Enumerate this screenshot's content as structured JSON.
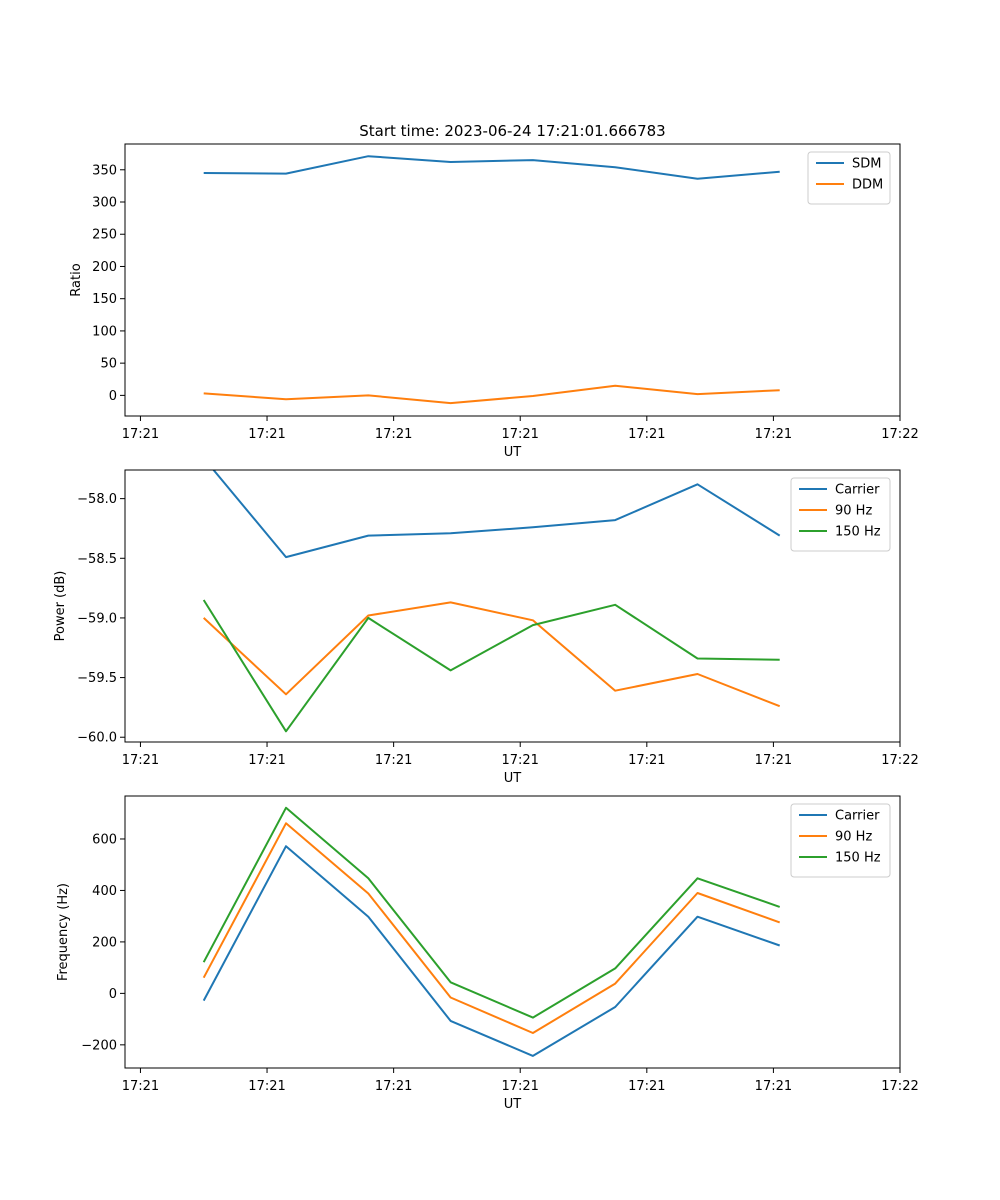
{
  "figure": {
    "title": "Start time: 2023-06-24 17:21:01.666783"
  },
  "colors": {
    "blue": "#1f77b4",
    "orange": "#ff7f0e",
    "green": "#2ca02c"
  },
  "chart_data": [
    {
      "type": "line",
      "title": "Start time: 2023-06-24 17:21:01.666783",
      "xlabel": "UT",
      "ylabel": "Ratio",
      "x_tick_labels": [
        "17:21",
        "17:21",
        "17:21",
        "17:21",
        "17:21",
        "17:21",
        "17:22"
      ],
      "y_ticks": [
        0,
        50,
        100,
        150,
        200,
        250,
        300,
        350
      ],
      "y_tick_labels": [
        "0",
        "50",
        "100",
        "150",
        "200",
        "250",
        "300",
        "350"
      ],
      "ylim": [
        -32,
        390
      ],
      "xlim": [
        -0.122,
        6.0
      ],
      "x": [
        0.5,
        1.15,
        1.8,
        2.45,
        3.1,
        3.75,
        4.4,
        5.05
      ],
      "legend_position": "upper-right",
      "grid": false,
      "series": [
        {
          "name": "SDM",
          "color": "#1f77b4",
          "values": [
            345,
            344,
            371,
            362,
            365,
            354,
            336,
            347
          ]
        },
        {
          "name": "DDM",
          "color": "#ff7f0e",
          "values": [
            3,
            -6,
            0,
            -12,
            -1,
            15,
            2,
            8
          ]
        }
      ]
    },
    {
      "type": "line",
      "xlabel": "UT",
      "ylabel": "Power (dB)",
      "x_tick_labels": [
        "17:21",
        "17:21",
        "17:21",
        "17:21",
        "17:21",
        "17:21",
        "17:22"
      ],
      "y_ticks": [
        -60.0,
        -59.5,
        -59.0,
        -58.5,
        -58.0
      ],
      "y_tick_labels": [
        "−60.0",
        "−59.5",
        "−59.0",
        "−58.5",
        "−58.0"
      ],
      "ylim": [
        -60.04,
        -57.76
      ],
      "xlim": [
        -0.122,
        6.0
      ],
      "x": [
        0.5,
        1.15,
        1.8,
        2.45,
        3.1,
        3.75,
        4.4,
        5.05
      ],
      "legend_position": "upper-right",
      "grid": false,
      "series": [
        {
          "name": "Carrier",
          "color": "#1f77b4",
          "values": [
            -57.66,
            -58.49,
            -58.31,
            -58.29,
            -58.24,
            -58.18,
            -57.88,
            -58.31
          ]
        },
        {
          "name": "90 Hz",
          "color": "#ff7f0e",
          "values": [
            -59.0,
            -59.64,
            -58.98,
            -58.87,
            -59.02,
            -59.61,
            -59.47,
            -59.74
          ]
        },
        {
          "name": "150 Hz",
          "color": "#2ca02c",
          "values": [
            -58.85,
            -59.95,
            -59.0,
            -59.44,
            -59.06,
            -58.89,
            -59.34,
            -59.35
          ]
        }
      ]
    },
    {
      "type": "line",
      "xlabel": "UT",
      "ylabel": "Frequency (Hz)",
      "x_tick_labels": [
        "17:21",
        "17:21",
        "17:21",
        "17:21",
        "17:21",
        "17:21",
        "17:22"
      ],
      "y_ticks": [
        -200,
        0,
        200,
        400,
        600
      ],
      "y_tick_labels": [
        "−200",
        "0",
        "200",
        "400",
        "600"
      ],
      "ylim": [
        -290,
        767
      ],
      "xlim": [
        -0.122,
        6.0
      ],
      "x": [
        0.5,
        1.15,
        1.8,
        2.45,
        3.1,
        3.75,
        4.4,
        5.05
      ],
      "legend_position": "upper-right",
      "grid": false,
      "series": [
        {
          "name": "Carrier",
          "color": "#1f77b4",
          "values": [
            -28,
            572,
            298,
            -107,
            -243,
            -53,
            298,
            186
          ]
        },
        {
          "name": "90 Hz",
          "color": "#ff7f0e",
          "values": [
            61,
            661,
            388,
            -16,
            -154,
            38,
            390,
            276
          ]
        },
        {
          "name": "150 Hz",
          "color": "#2ca02c",
          "values": [
            121,
            721,
            447,
            43,
            -94,
            97,
            447,
            336
          ]
        }
      ]
    }
  ]
}
